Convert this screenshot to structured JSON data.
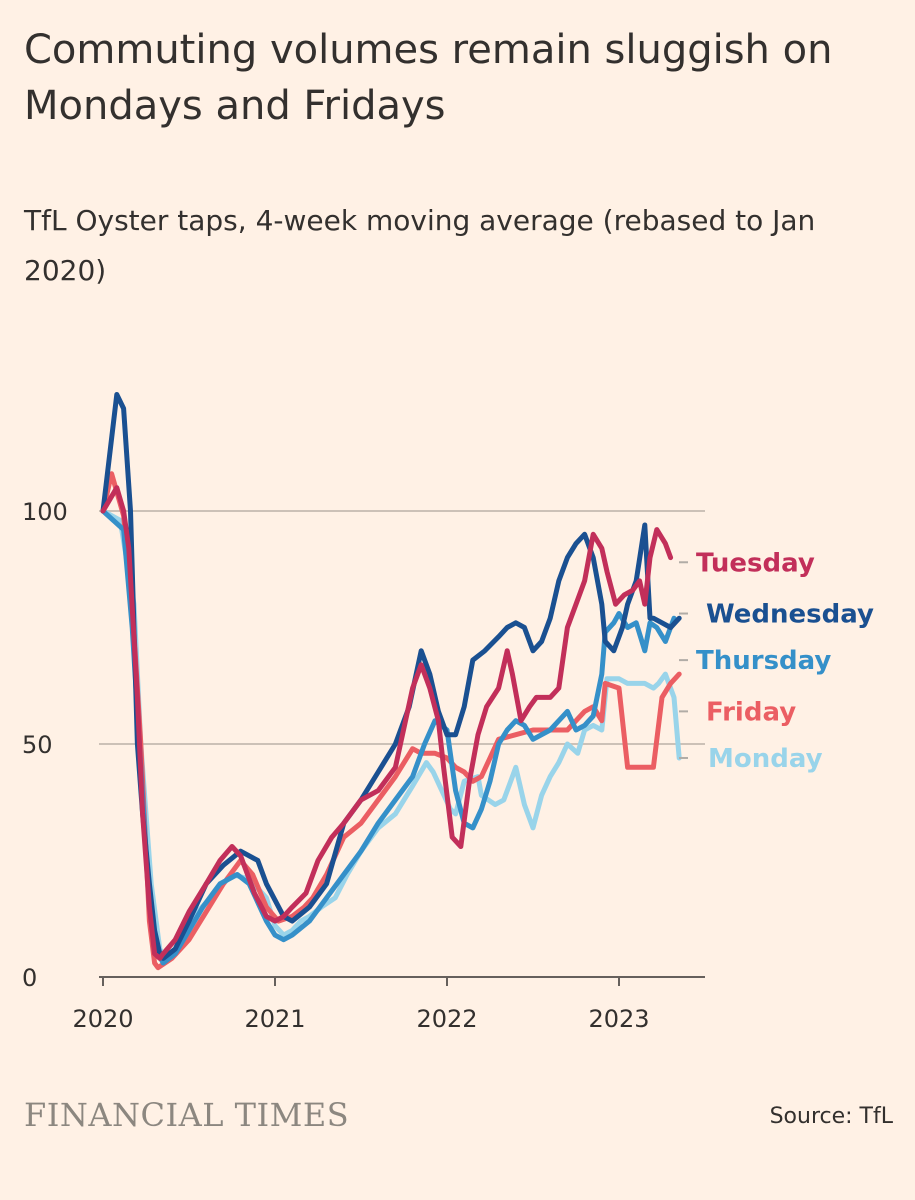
{
  "header": {
    "title": "Commuting volumes remain sluggish on Mondays and Fridays",
    "subtitle": "TfL Oyster taps, 4-week moving average (rebased to Jan 2020)"
  },
  "footer": {
    "brand": "FINANCIAL TIMES",
    "source": "Source: TfL"
  },
  "chart_data": {
    "type": "line",
    "title": "Commuting volumes remain sluggish on Mondays and Fridays",
    "subtitle": "TfL Oyster taps, 4-week moving average (rebased to Jan 2020)",
    "xlabel": "",
    "ylabel": "",
    "xlim": [
      2020.0,
      2023.55
    ],
    "ylim": [
      0,
      125
    ],
    "x_ticks": [
      {
        "value": 2020,
        "label": "2020"
      },
      {
        "value": 2021,
        "label": "2021"
      },
      {
        "value": 2022,
        "label": "2022"
      },
      {
        "value": 2023,
        "label": "2023"
      }
    ],
    "y_ticks": [
      {
        "value": 0,
        "label": "0"
      },
      {
        "value": 50,
        "label": "50"
      },
      {
        "value": 100,
        "label": "100"
      }
    ],
    "grid": "horizontal",
    "legend": "direct labels at line ends (right)",
    "colors": {
      "background": "#fff1e5",
      "grid": "#ccc1b7",
      "axis": "#66605c"
    },
    "series": [
      {
        "name": "Monday",
        "color": "#99d4ea",
        "x": [
          2020.0,
          2020.1,
          2020.18,
          2020.22,
          2020.28,
          2020.33,
          2020.36,
          2020.45,
          2020.55,
          2020.65,
          2020.75,
          2020.85,
          2020.95,
          2021.0,
          2021.05,
          2021.1,
          2021.15,
          2021.2,
          2021.27,
          2021.35,
          2021.42,
          2021.5,
          2021.6,
          2021.7,
          2021.8,
          2021.88,
          2021.92,
          2021.97,
          2022.02,
          2022.05,
          2022.1,
          2022.18,
          2022.2,
          2022.28,
          2022.33,
          2022.38,
          2022.4,
          2022.45,
          2022.5,
          2022.55,
          2022.6,
          2022.65,
          2022.7,
          2022.76,
          2022.8,
          2022.85,
          2022.9,
          2022.93,
          2023.0,
          2023.05,
          2023.1,
          2023.15,
          2023.2,
          2023.23,
          2023.27,
          2023.32,
          2023.35
        ],
        "values": [
          100,
          98,
          80,
          50,
          20,
          6,
          4,
          6,
          14,
          18,
          22,
          21,
          17,
          11,
          9,
          10,
          12,
          13,
          15,
          17,
          22,
          27,
          32,
          35,
          41,
          46,
          44,
          40,
          36,
          35,
          42,
          43,
          39,
          37,
          38,
          43,
          45,
          37,
          32,
          39,
          43,
          46,
          50,
          48,
          53,
          54,
          53,
          64,
          64,
          63,
          63,
          63,
          62,
          63,
          65,
          60,
          47
        ]
      },
      {
        "name": "Friday",
        "color": "#eb5e63",
        "x": [
          2020.0,
          2020.05,
          2020.12,
          2020.17,
          2020.22,
          2020.27,
          2020.3,
          2020.32,
          2020.4,
          2020.5,
          2020.6,
          2020.7,
          2020.8,
          2020.87,
          2020.95,
          2021.02,
          2021.1,
          2021.17,
          2021.22,
          2021.3,
          2021.4,
          2021.5,
          2021.6,
          2021.7,
          2021.8,
          2021.85,
          2021.93,
          2022.0,
          2022.05,
          2022.1,
          2022.15,
          2022.2,
          2022.25,
          2022.3,
          2022.4,
          2022.5,
          2022.6,
          2022.7,
          2022.75,
          2022.8,
          2022.85,
          2022.9,
          2022.92,
          2023.0,
          2023.05,
          2023.15,
          2023.2,
          2023.25,
          2023.3,
          2023.35
        ],
        "values": [
          100,
          108,
          99,
          80,
          50,
          12,
          3,
          2,
          4,
          8,
          14,
          20,
          25,
          22,
          15,
          12,
          13,
          15,
          17,
          22,
          30,
          33,
          38,
          43,
          49,
          48,
          48,
          47,
          45,
          44,
          42,
          43,
          47,
          51,
          52,
          53,
          53,
          53,
          55,
          57,
          58,
          55,
          63,
          62,
          45,
          45,
          45,
          60,
          63,
          65
        ]
      },
      {
        "name": "Thursday",
        "color": "#3590c9",
        "x": [
          2020.0,
          2020.12,
          2020.17,
          2020.22,
          2020.27,
          2020.32,
          2020.35,
          2020.42,
          2020.5,
          2020.58,
          2020.68,
          2020.78,
          2020.85,
          2020.9,
          2020.95,
          2021.0,
          2021.05,
          2021.1,
          2021.2,
          2021.3,
          2021.4,
          2021.5,
          2021.6,
          2021.7,
          2021.8,
          2021.87,
          2021.93,
          2022.0,
          2022.05,
          2022.1,
          2022.15,
          2022.2,
          2022.25,
          2022.3,
          2022.35,
          2022.4,
          2022.45,
          2022.5,
          2022.55,
          2022.6,
          2022.65,
          2022.7,
          2022.75,
          2022.8,
          2022.85,
          2022.9,
          2022.92,
          2022.97,
          2023.0,
          2023.05,
          2023.1,
          2023.15,
          2023.18,
          2023.22,
          2023.27,
          2023.32
        ],
        "values": [
          100,
          96,
          75,
          45,
          15,
          5,
          3,
          5,
          10,
          15,
          20,
          22,
          20,
          16,
          12,
          9,
          8,
          9,
          12,
          17,
          22,
          27,
          33,
          38,
          43,
          50,
          55,
          53,
          40,
          33,
          32,
          36,
          42,
          50,
          53,
          55,
          54,
          51,
          52,
          53,
          55,
          57,
          53,
          54,
          56,
          65,
          74,
          76,
          78,
          75,
          76,
          70,
          76,
          75,
          72,
          77
        ]
      },
      {
        "name": "Wednesday",
        "color": "#1a5091",
        "x": [
          2020.0,
          2020.08,
          2020.12,
          2020.16,
          2020.2,
          2020.23,
          2020.27,
          2020.3,
          2020.33,
          2020.35,
          2020.42,
          2020.5,
          2020.6,
          2020.7,
          2020.8,
          2020.9,
          2020.95,
          2021.05,
          2021.1,
          2021.2,
          2021.3,
          2021.4,
          2021.5,
          2021.6,
          2021.7,
          2021.78,
          2021.85,
          2021.9,
          2021.95,
          2022.0,
          2022.05,
          2022.1,
          2022.15,
          2022.22,
          2022.3,
          2022.35,
          2022.4,
          2022.45,
          2022.5,
          2022.55,
          2022.6,
          2022.65,
          2022.7,
          2022.75,
          2022.8,
          2022.85,
          2022.9,
          2022.92,
          2022.97,
          2023.02,
          2023.05,
          2023.1,
          2023.15,
          2023.18,
          2023.2,
          2023.25,
          2023.3,
          2023.35
        ],
        "values": [
          100,
          125,
          122,
          100,
          50,
          35,
          20,
          10,
          5,
          4,
          6,
          12,
          20,
          24,
          27,
          25,
          20,
          13,
          12,
          15,
          20,
          33,
          38,
          44,
          50,
          58,
          70,
          65,
          57,
          52,
          52,
          58,
          68,
          70,
          73,
          75,
          76,
          75,
          70,
          72,
          77,
          85,
          90,
          93,
          95,
          90,
          80,
          72,
          70,
          75,
          80,
          85,
          97,
          77,
          77,
          76,
          75,
          77
        ]
      },
      {
        "name": "Tuesday",
        "color": "#c22f5a",
        "x": [
          2020.0,
          2020.08,
          2020.12,
          2020.15,
          2020.2,
          2020.23,
          2020.27,
          2020.3,
          2020.33,
          2020.35,
          2020.42,
          2020.5,
          2020.6,
          2020.68,
          2020.75,
          2020.8,
          2020.88,
          2020.95,
          2021.0,
          2021.05,
          2021.1,
          2021.18,
          2021.25,
          2021.33,
          2021.4,
          2021.5,
          2021.6,
          2021.7,
          2021.8,
          2021.85,
          2021.9,
          2021.95,
          2021.98,
          2022.03,
          2022.08,
          2022.13,
          2022.18,
          2022.23,
          2022.3,
          2022.35,
          2022.38,
          2022.43,
          2022.48,
          2022.52,
          2022.6,
          2022.65,
          2022.7,
          2022.75,
          2022.8,
          2022.85,
          2022.9,
          2022.93,
          2022.98,
          2023.03,
          2023.08,
          2023.12,
          2023.15,
          2023.18,
          2023.22,
          2023.27,
          2023.3
        ],
        "values": [
          100,
          105,
          100,
          92,
          60,
          35,
          15,
          5,
          4,
          5,
          8,
          14,
          20,
          25,
          28,
          26,
          18,
          13,
          12,
          13,
          15,
          18,
          25,
          30,
          33,
          38,
          40,
          45,
          62,
          67,
          62,
          55,
          45,
          30,
          28,
          42,
          52,
          58,
          62,
          70,
          65,
          55,
          58,
          60,
          60,
          62,
          75,
          80,
          85,
          95,
          92,
          87,
          80,
          82,
          83,
          85,
          80,
          90,
          96,
          93,
          90
        ]
      }
    ],
    "end_labels": [
      {
        "series": "Tuesday",
        "text": "Tuesday",
        "y": 89
      },
      {
        "series": "Wednesday",
        "text": "Wednesday",
        "y": 78
      },
      {
        "series": "Thursday",
        "text": "Thursday",
        "y": 68
      },
      {
        "series": "Friday",
        "text": "Friday",
        "y": 57
      },
      {
        "series": "Monday",
        "text": "Monday",
        "y": 47
      }
    ]
  }
}
